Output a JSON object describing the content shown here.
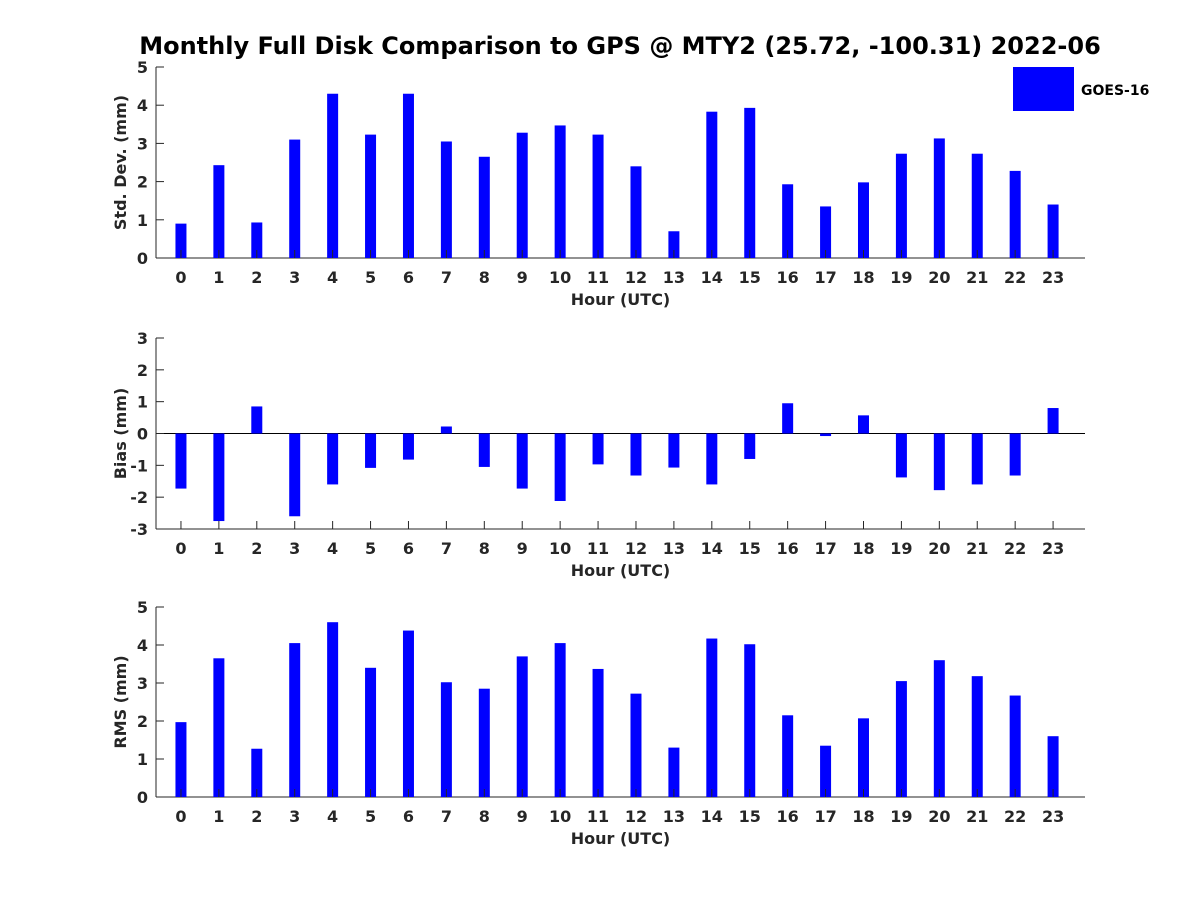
{
  "title": "Monthly Full Disk Comparison to GPS @ MTY2 (25.72, -100.31) 2022-06",
  "legend": {
    "label": "GOES-16",
    "color": "#0000ff",
    "placement": "top-right"
  },
  "colors": {
    "bar": "#0000ff",
    "axis": "#262626",
    "zero_line": "#000000"
  },
  "chart_data": [
    {
      "type": "bar",
      "xlabel": "Hour (UTC)",
      "ylabel": "Std. Dev. (mm)",
      "ylim": [
        0,
        5
      ],
      "yticks": [
        0,
        1,
        2,
        3,
        4,
        5
      ],
      "categories": [
        "0",
        "1",
        "2",
        "3",
        "4",
        "5",
        "6",
        "7",
        "8",
        "9",
        "10",
        "11",
        "12",
        "13",
        "14",
        "15",
        "16",
        "17",
        "18",
        "19",
        "20",
        "21",
        "22",
        "23"
      ],
      "series": [
        {
          "name": "GOES-16",
          "values": [
            0.9,
            2.43,
            0.93,
            3.1,
            4.3,
            3.23,
            4.3,
            3.05,
            2.65,
            3.28,
            3.47,
            3.23,
            2.4,
            0.7,
            3.83,
            3.93,
            1.93,
            1.35,
            1.98,
            2.73,
            3.13,
            2.73,
            2.28,
            1.4
          ]
        }
      ],
      "grid": false
    },
    {
      "type": "bar",
      "xlabel": "Hour (UTC)",
      "ylabel": "Bias (mm)",
      "ylim": [
        -3,
        3
      ],
      "yticks": [
        -3,
        -2,
        -1,
        0,
        1,
        2,
        3
      ],
      "categories": [
        "0",
        "1",
        "2",
        "3",
        "4",
        "5",
        "6",
        "7",
        "8",
        "9",
        "10",
        "11",
        "12",
        "13",
        "14",
        "15",
        "16",
        "17",
        "18",
        "19",
        "20",
        "21",
        "22",
        "23"
      ],
      "series": [
        {
          "name": "GOES-16",
          "values": [
            -1.73,
            -2.75,
            0.85,
            -2.6,
            -1.6,
            -1.08,
            -0.82,
            0.22,
            -1.05,
            -1.73,
            -2.12,
            -0.97,
            -1.32,
            -1.07,
            -1.6,
            -0.8,
            0.95,
            -0.08,
            0.57,
            -1.38,
            -1.78,
            -1.6,
            -1.32,
            0.8
          ]
        }
      ],
      "grid": false
    },
    {
      "type": "bar",
      "xlabel": "Hour (UTC)",
      "ylabel": "RMS (mm)",
      "ylim": [
        0,
        5
      ],
      "yticks": [
        0,
        1,
        2,
        3,
        4,
        5
      ],
      "categories": [
        "0",
        "1",
        "2",
        "3",
        "4",
        "5",
        "6",
        "7",
        "8",
        "9",
        "10",
        "11",
        "12",
        "13",
        "14",
        "15",
        "16",
        "17",
        "18",
        "19",
        "20",
        "21",
        "22",
        "23"
      ],
      "series": [
        {
          "name": "GOES-16",
          "values": [
            1.97,
            3.65,
            1.27,
            4.05,
            4.6,
            3.4,
            4.38,
            3.02,
            2.85,
            3.7,
            4.05,
            3.37,
            2.72,
            1.3,
            4.17,
            4.02,
            2.15,
            1.35,
            2.07,
            3.05,
            3.6,
            3.18,
            2.67,
            1.6
          ]
        }
      ],
      "grid": false
    }
  ]
}
